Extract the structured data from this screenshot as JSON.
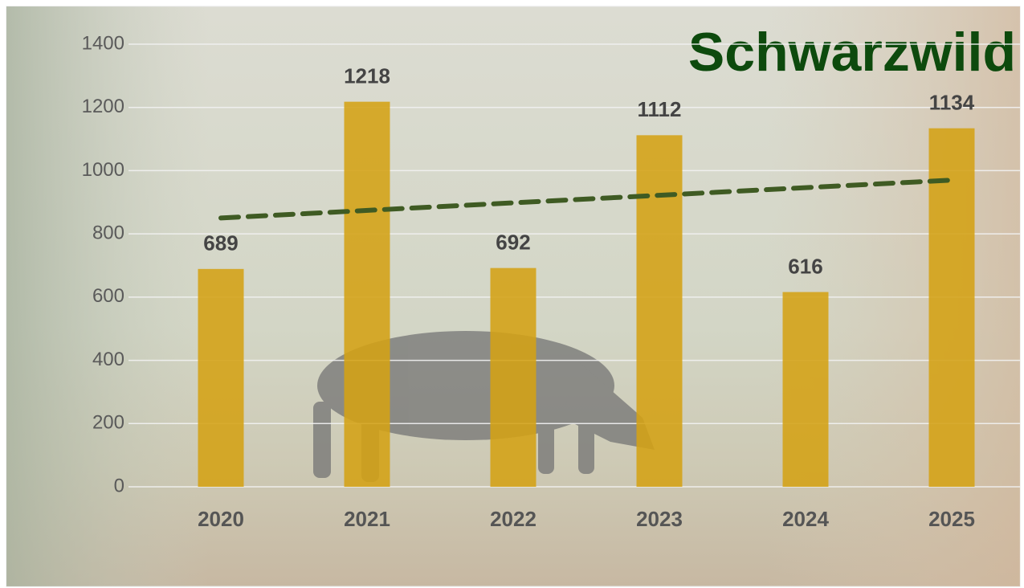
{
  "chart_data": {
    "type": "bar",
    "title": "Schwarzwild",
    "categories": [
      "2020",
      "2021",
      "2022",
      "2023",
      "2024",
      "2025"
    ],
    "values": [
      689,
      1218,
      692,
      1112,
      616,
      1134
    ],
    "color": "#d4a214",
    "ylim": [
      0,
      1400
    ],
    "yticks": [
      0,
      200,
      400,
      600,
      800,
      1000,
      1200,
      1400
    ],
    "grid": true,
    "trendline": {
      "type": "linear",
      "color": "#3f5b23"
    }
  }
}
